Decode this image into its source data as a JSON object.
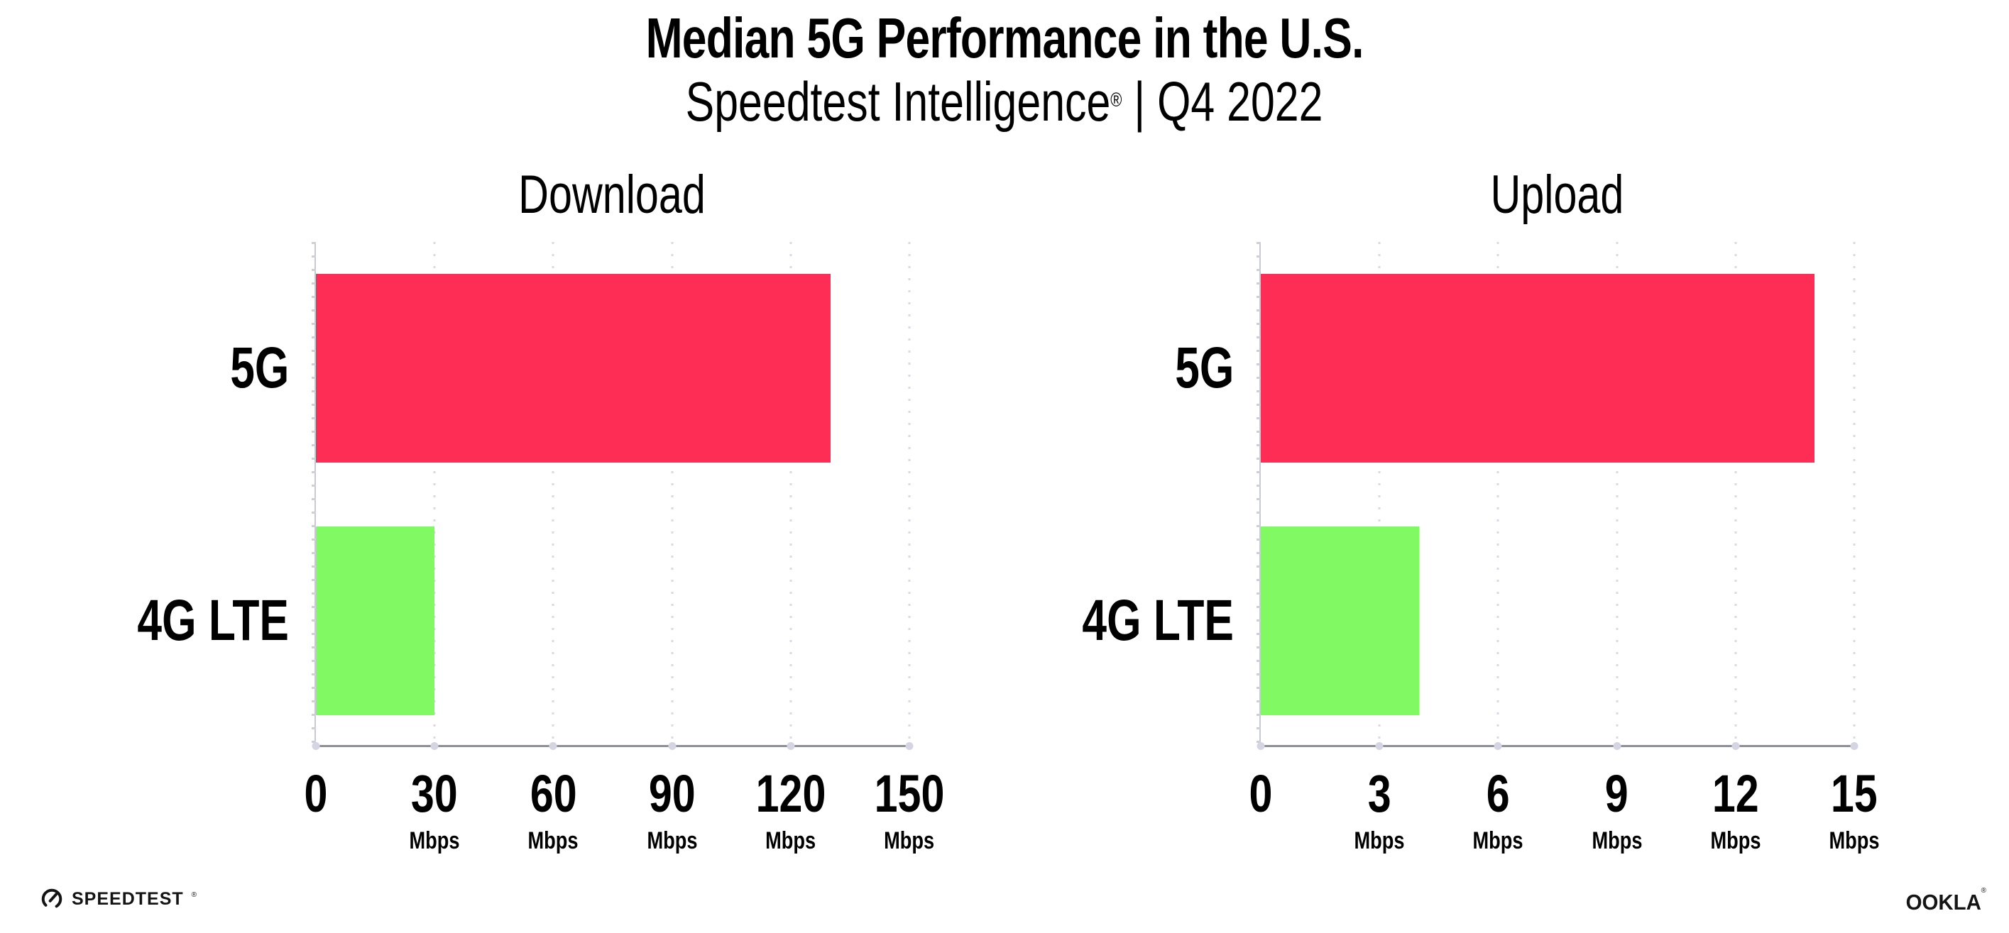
{
  "page": {
    "title": "Median 5G Performance in the U.S.",
    "subtitle": {
      "brand": "Speedtest Intelligence",
      "mark": "®",
      "rest": " | Q4 2022"
    }
  },
  "chart_data": [
    {
      "type": "bar",
      "orientation": "horizontal",
      "title": "Download",
      "categories": [
        "5G",
        "4G LTE"
      ],
      "values": [
        130,
        30
      ],
      "unit": "Mbps",
      "xlabel": "",
      "ylabel": "",
      "xlim": [
        0,
        150
      ],
      "xticks": [
        0,
        30,
        60,
        90,
        120,
        150
      ],
      "grid": "vertical-dotted",
      "legend": "none",
      "bar_colors": [
        "#fe2d55",
        "#80f963"
      ]
    },
    {
      "type": "bar",
      "orientation": "horizontal",
      "title": "Upload",
      "categories": [
        "5G",
        "4G LTE"
      ],
      "values": [
        14,
        4
      ],
      "unit": "Mbps",
      "xlabel": "",
      "ylabel": "",
      "xlim": [
        0,
        15
      ],
      "xticks": [
        0,
        3,
        6,
        9,
        12,
        15
      ],
      "grid": "vertical-dotted",
      "legend": "none",
      "bar_colors": [
        "#fe2d55",
        "#80f963"
      ]
    }
  ],
  "footer": {
    "speedtest": "SPEEDTEST",
    "speedtest_mark": "®",
    "ookla": "OOKLA",
    "ookla_mark": "®"
  },
  "colors": {
    "bar_5g": "#fe2d55",
    "bar_4g_lte": "#80f963",
    "gridline": "#d9d9e6",
    "axis_bottom": "#8e8e96",
    "axis_left": "#c9c9d4",
    "text": "#000000",
    "logo": "#141414"
  }
}
